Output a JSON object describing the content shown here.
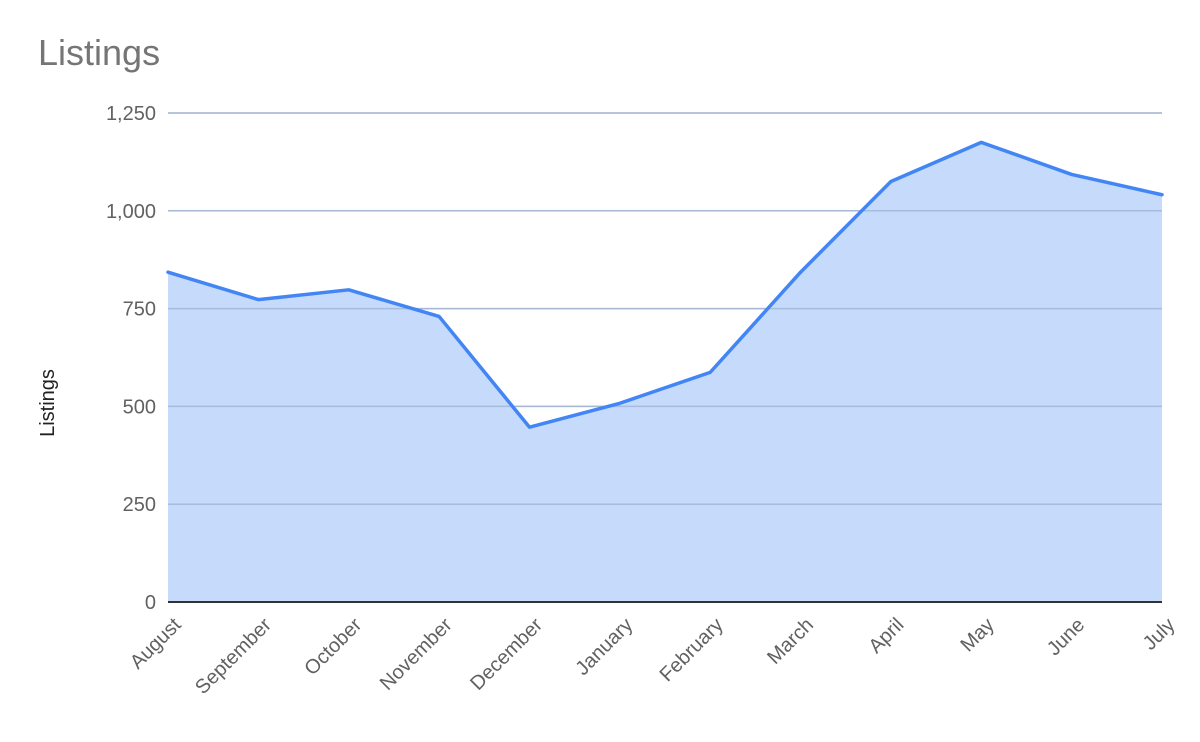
{
  "chart_data": {
    "type": "area",
    "title": "Listings",
    "xlabel": "",
    "ylabel": "Listings",
    "categories": [
      "August",
      "September",
      "October",
      "November",
      "December",
      "January",
      "February",
      "March",
      "April",
      "May",
      "June",
      "July"
    ],
    "series": [
      {
        "values": [
          843,
          773,
          798,
          730,
          447,
          508,
          587,
          843,
          1075,
          1175,
          1093,
          1041
        ]
      }
    ],
    "ylim": [
      0,
      1250
    ],
    "yticks": [
      0,
      250,
      500,
      750,
      1000,
      1250
    ],
    "ytick_labels": [
      "0",
      "250",
      "500",
      "750",
      "1,000",
      "1,250"
    ],
    "grid": true,
    "legend": "none",
    "colors": {
      "line": "#4285f4",
      "fill": "#c6dafc",
      "grid": "#cccccc",
      "axis": "#333333"
    }
  }
}
